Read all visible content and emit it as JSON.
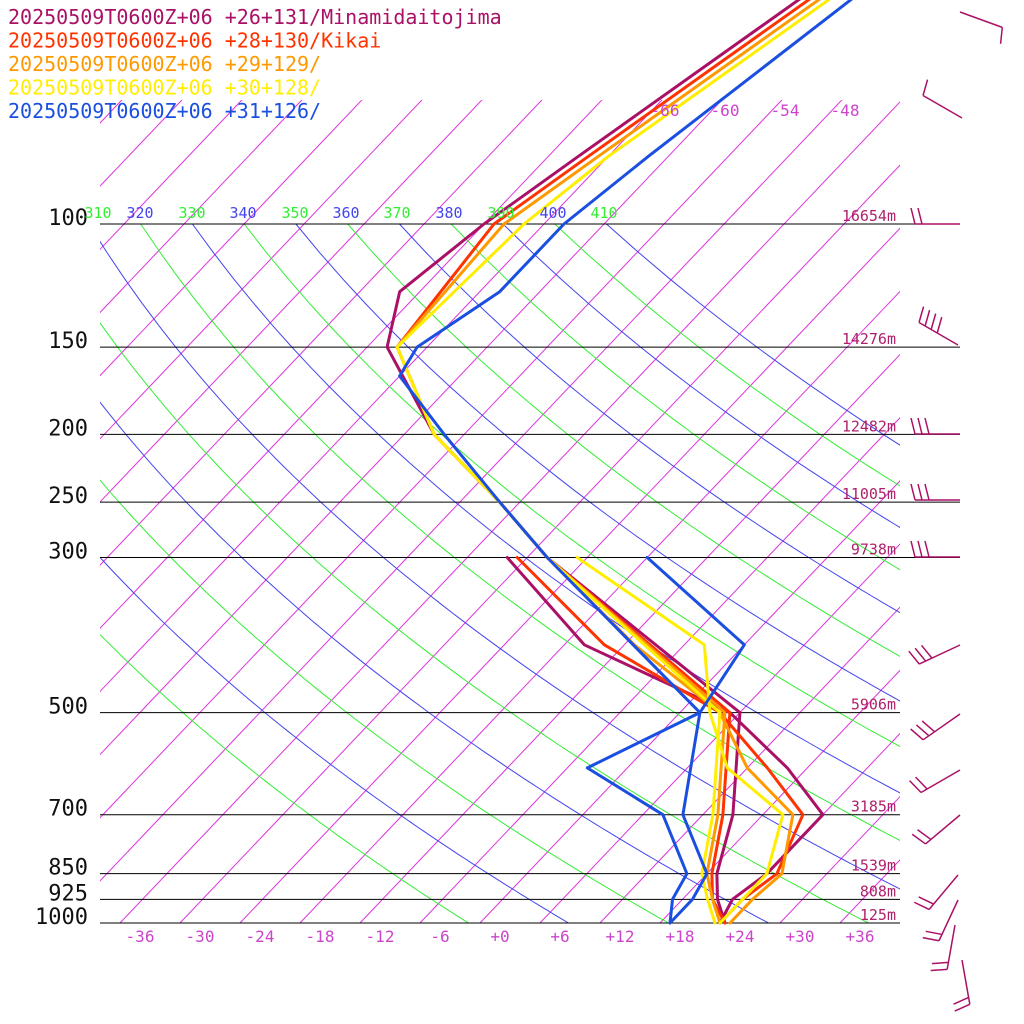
{
  "chart_data": {
    "type": "line",
    "subtype": "skew-T sounding",
    "series": [
      {
        "name": "20250509T0600Z+06 +26+131/Minamidaitojima",
        "color": "#aa1166",
        "temp": [
          [
            1000,
            22.5
          ],
          [
            925,
            19.5
          ],
          [
            850,
            17
          ],
          [
            700,
            13
          ],
          [
            500,
            4
          ],
          [
            300,
            -30
          ],
          [
            250,
            -40
          ],
          [
            200,
            -53
          ],
          [
            150,
            -66
          ],
          [
            125,
            -70
          ],
          [
            100,
            -68
          ],
          [
            80,
            -65
          ],
          [
            60,
            -61
          ],
          [
            45,
            -57
          ]
        ],
        "dew": [
          [
            1000,
            22
          ],
          [
            925,
            21
          ],
          [
            850,
            22
          ],
          [
            700,
            22
          ],
          [
            600,
            14
          ],
          [
            500,
            3
          ],
          [
            400,
            -18
          ],
          [
            300,
            -34
          ]
        ]
      },
      {
        "name": "20250509T0600Z+06 +28+130/Kikai",
        "color": "#ff3300",
        "temp": [
          [
            1000,
            22.5
          ],
          [
            925,
            19
          ],
          [
            850,
            16.5
          ],
          [
            700,
            12
          ],
          [
            500,
            3
          ],
          [
            300,
            -30
          ],
          [
            250,
            -40
          ],
          [
            200,
            -53
          ],
          [
            150,
            -65
          ],
          [
            100,
            -67
          ],
          [
            80,
            -64
          ],
          [
            60,
            -60
          ],
          [
            45,
            -56
          ]
        ],
        "dew": [
          [
            1000,
            22
          ],
          [
            925,
            22
          ],
          [
            850,
            23
          ],
          [
            700,
            20
          ],
          [
            600,
            12
          ],
          [
            500,
            2
          ],
          [
            400,
            -16
          ],
          [
            300,
            -33
          ]
        ]
      },
      {
        "name": "20250509T0600Z+06 +29+129/",
        "color": "#ff9900",
        "temp": [
          [
            1000,
            22
          ],
          [
            925,
            19
          ],
          [
            850,
            16
          ],
          [
            700,
            11.5
          ],
          [
            500,
            2.5
          ],
          [
            300,
            -30
          ],
          [
            250,
            -40
          ],
          [
            200,
            -53
          ],
          [
            150,
            -65
          ],
          [
            100,
            -66
          ],
          [
            80,
            -63
          ],
          [
            60,
            -59
          ],
          [
            45,
            -55
          ]
        ],
        "dew": [
          [
            1000,
            23
          ],
          [
            925,
            23
          ],
          [
            850,
            23.5
          ],
          [
            700,
            19
          ],
          [
            600,
            10
          ],
          [
            500,
            2
          ],
          [
            400,
            -13
          ],
          [
            300,
            -30
          ]
        ]
      },
      {
        "name": "20250509T0600Z+06 +30+128/",
        "color": "#ffee00",
        "temp": [
          [
            1000,
            21.5
          ],
          [
            925,
            18.5
          ],
          [
            850,
            15.5
          ],
          [
            700,
            11
          ],
          [
            500,
            2
          ],
          [
            300,
            -30
          ],
          [
            250,
            -40
          ],
          [
            200,
            -53
          ],
          [
            150,
            -65
          ],
          [
            100,
            -64
          ],
          [
            80,
            -62
          ],
          [
            60,
            -58
          ],
          [
            45,
            -54
          ]
        ],
        "dew": [
          [
            1000,
            22
          ],
          [
            925,
            22
          ],
          [
            850,
            22
          ],
          [
            700,
            18
          ],
          [
            600,
            8
          ],
          [
            500,
            1
          ],
          [
            400,
            -6
          ],
          [
            300,
            -27
          ]
        ]
      },
      {
        "name": "20250509T0600Z+06 +31+126/",
        "color": "#1a4fe0",
        "temp": [
          [
            1000,
            17
          ],
          [
            925,
            17
          ],
          [
            850,
            16
          ],
          [
            700,
            8
          ],
          [
            500,
            0
          ],
          [
            300,
            -30
          ],
          [
            250,
            -40
          ],
          [
            200,
            -52
          ],
          [
            165,
            -62
          ],
          [
            150,
            -63
          ],
          [
            125,
            -60
          ],
          [
            100,
            -60
          ],
          [
            80,
            -58
          ],
          [
            60,
            -55
          ],
          [
            45,
            -52
          ]
        ],
        "dew": [
          [
            1000,
            17
          ],
          [
            925,
            15
          ],
          [
            850,
            14
          ],
          [
            700,
            6
          ],
          [
            600,
            -6
          ],
          [
            500,
            0
          ],
          [
            400,
            -2
          ],
          [
            300,
            -20
          ]
        ]
      }
    ],
    "pressure_levels": [
      "100",
      "150",
      "200",
      "250",
      "300",
      "500",
      "700",
      "850",
      "925",
      "1000"
    ],
    "heights": [
      {
        "p": 100,
        "label": "16654m"
      },
      {
        "p": 150,
        "label": "14276m"
      },
      {
        "p": 200,
        "label": "12482m"
      },
      {
        "p": 250,
        "label": "11005m"
      },
      {
        "p": 300,
        "label": "9738m"
      },
      {
        "p": 500,
        "label": "5906m"
      },
      {
        "p": 700,
        "label": "3185m"
      },
      {
        "p": 850,
        "label": "1539m"
      },
      {
        "p": 925,
        "label": "808m"
      },
      {
        "p": 1000,
        "label": "125m"
      }
    ],
    "x_ticks": [
      "-36",
      "-30",
      "-24",
      "-18",
      "-12",
      "-6",
      "+0",
      "+6",
      "+12",
      "+18",
      "+24",
      "+30",
      "+36"
    ],
    "top_temp_labels": [
      "-66",
      "-60",
      "-54",
      "-48"
    ],
    "theta_labels": [
      "310",
      "320",
      "330",
      "340",
      "350",
      "360",
      "370",
      "380",
      "390",
      "400",
      "410"
    ],
    "theta_colors": {
      "green": "#33ee33",
      "blue": "#4444ee"
    },
    "isotherm_color": "#dd33dd",
    "xlim": [
      -40,
      40
    ],
    "ylim_hPa": [
      1000,
      100
    ],
    "yscale": "log"
  }
}
